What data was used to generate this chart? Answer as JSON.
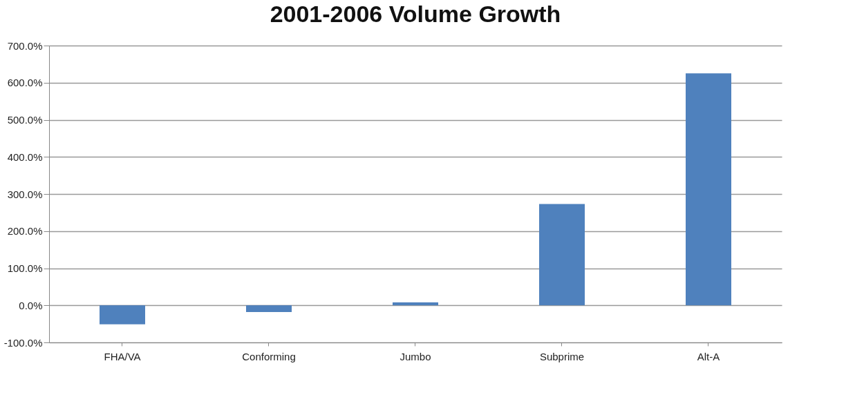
{
  "chart_data": {
    "type": "bar",
    "title": "2001-2006 Volume Growth",
    "categories": [
      "FHA/VA",
      "Conforming",
      "Jumbo",
      "Subprime",
      "Alt-A"
    ],
    "series": [
      {
        "color": "#4f81bd",
        "values": [
          -51,
          -18,
          8,
          273,
          625
        ]
      }
    ],
    "ylim": [
      -100,
      700
    ],
    "yticks": [
      {
        "value": -100,
        "label": "-100.0%"
      },
      {
        "value": 0,
        "label": "0.0%"
      },
      {
        "value": 100,
        "label": "100.0%"
      },
      {
        "value": 200,
        "label": "200.0%"
      },
      {
        "value": 300,
        "label": "300.0%"
      },
      {
        "value": 400,
        "label": "400.0%"
      },
      {
        "value": 500,
        "label": "500.0%"
      },
      {
        "value": 600,
        "label": "600.0%"
      },
      {
        "value": 700,
        "label": "700.0%"
      }
    ],
    "grid": "y",
    "legend": false
  }
}
